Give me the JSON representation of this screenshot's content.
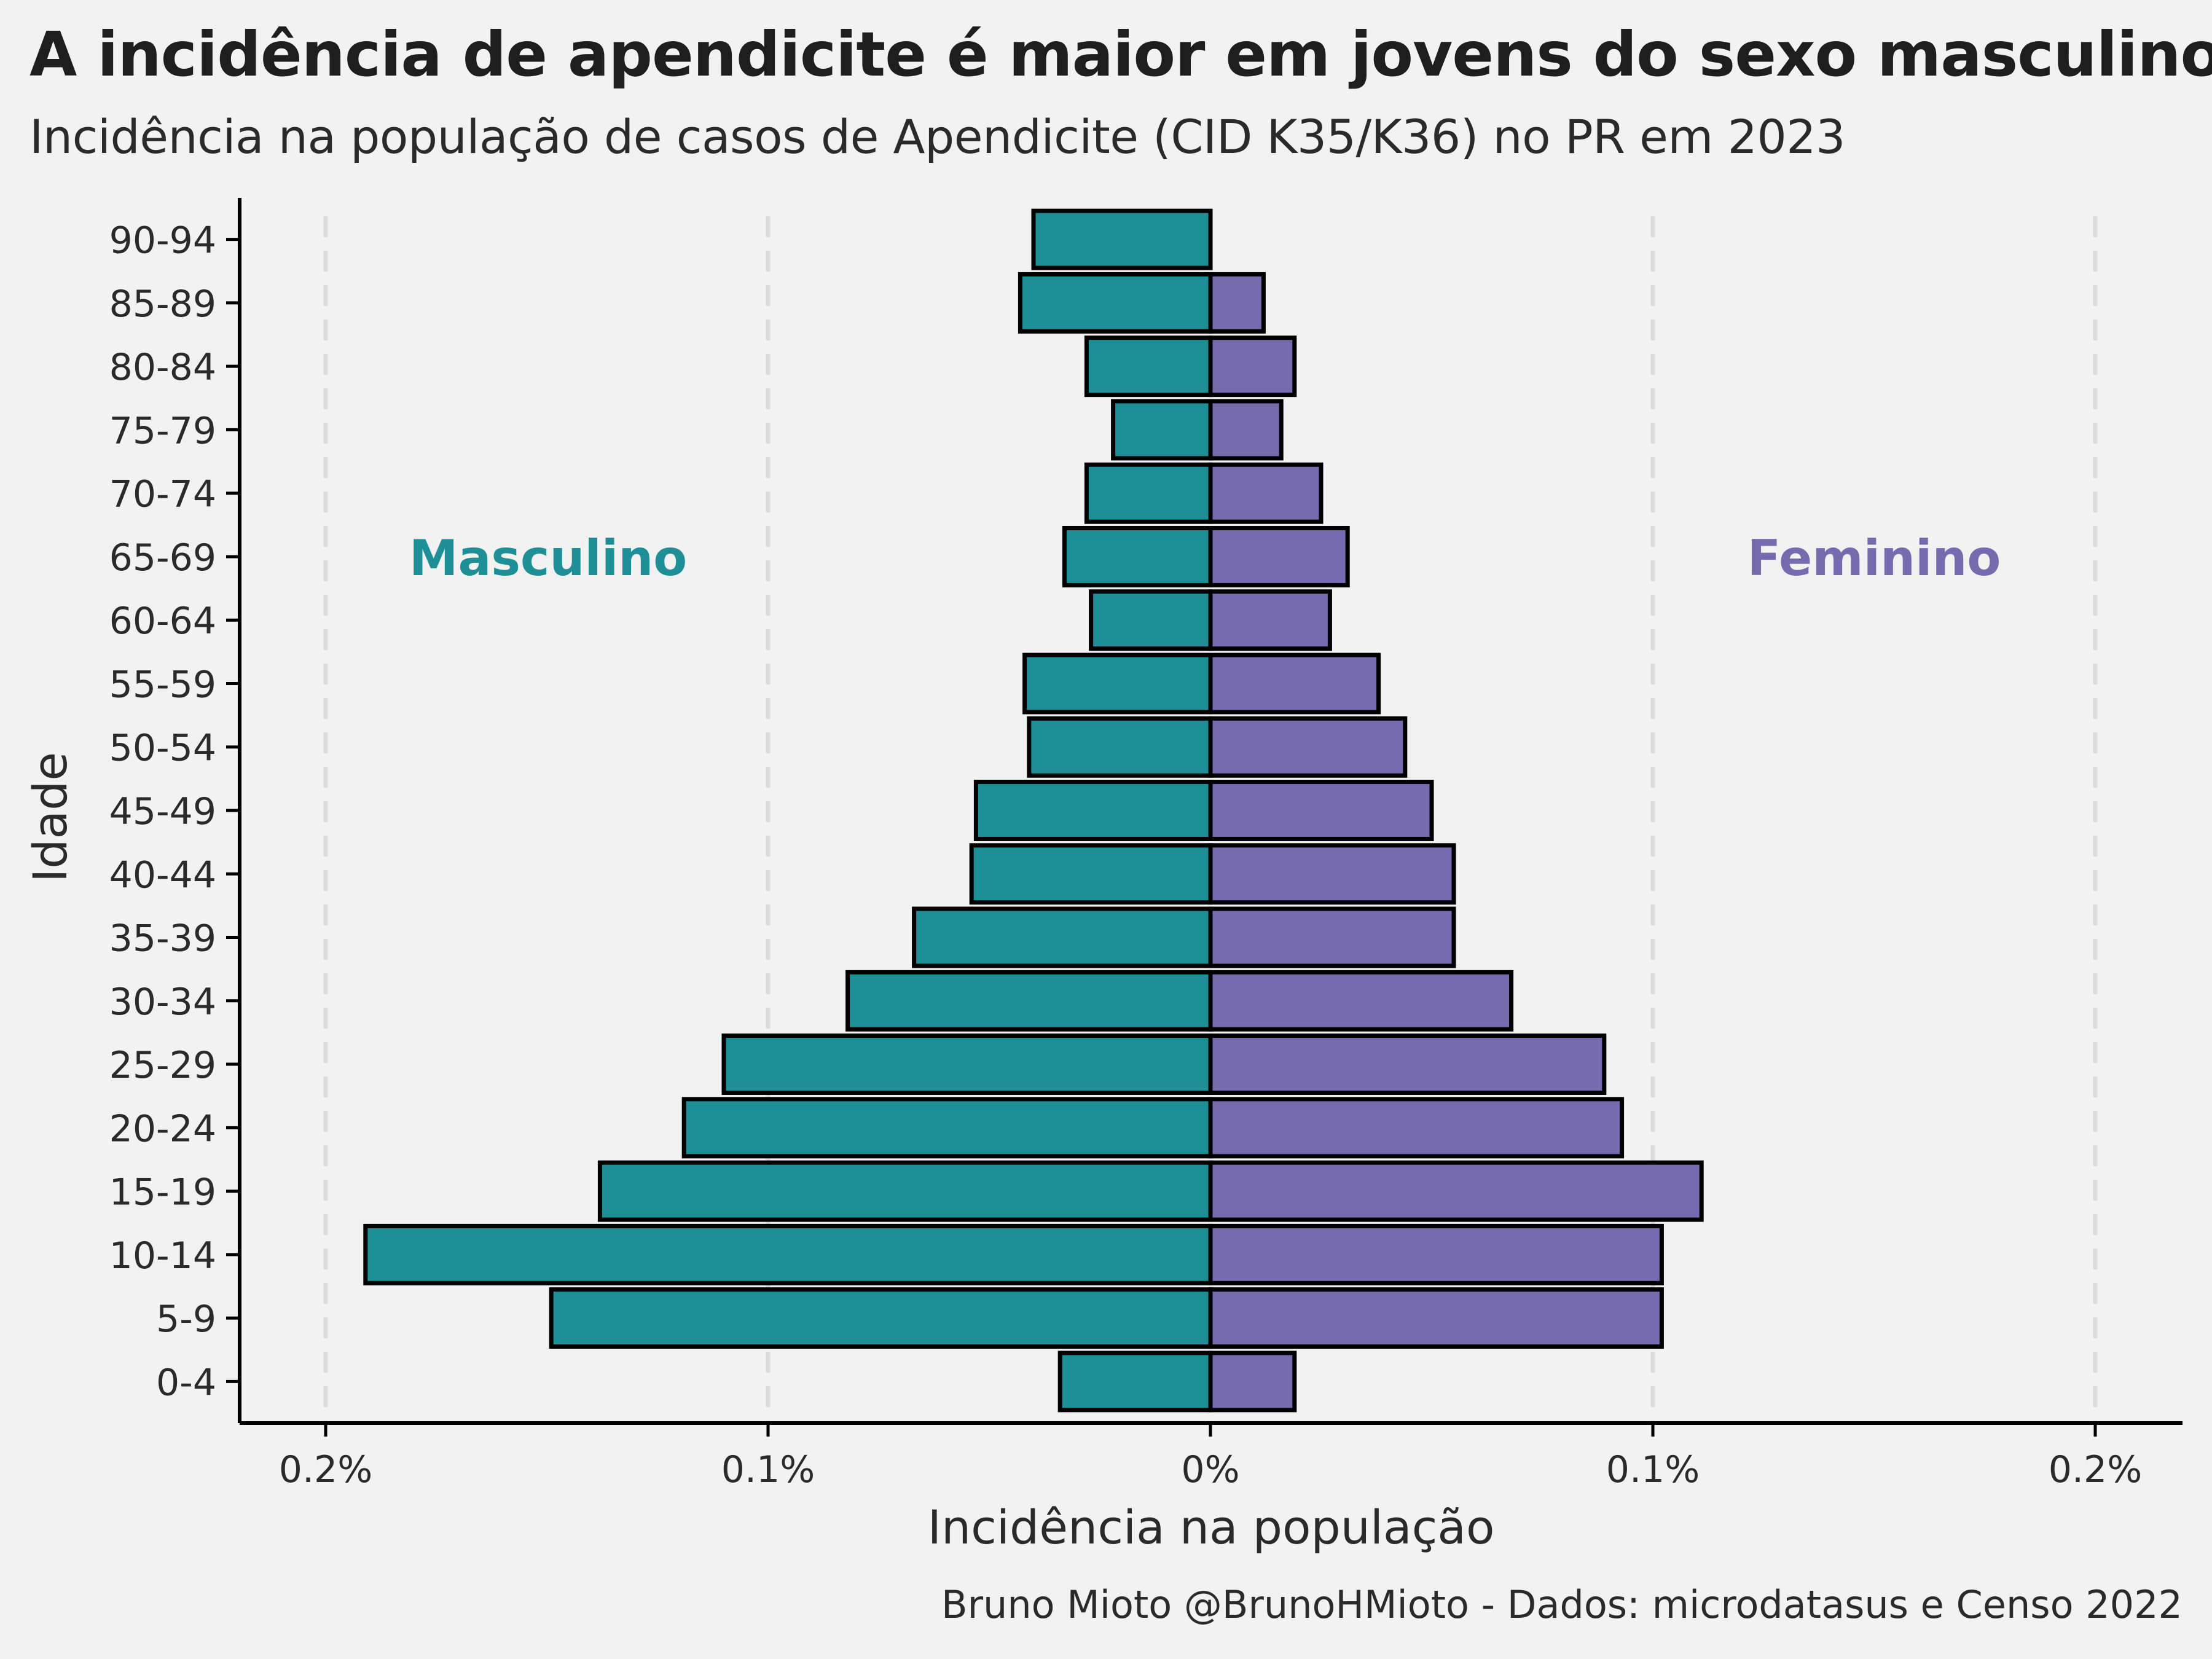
{
  "title": "A incidência de apendicite é maior em jovens do sexo masculino",
  "subtitle": "Incidência na população de casos de Apendicite (CID K35/K36) no PR em 2023",
  "caption": "Bruno Mioto @BrunoHMioto - Dados: microdatasus e Censo 2022",
  "colors": {
    "male": "#1e8f96",
    "female": "#776bb0",
    "background": "#f2f2f2",
    "grid": "#dcdcdc"
  },
  "chart_data": {
    "type": "bar",
    "orientation": "horizontal-pyramid",
    "xlabel": "Incidência na população",
    "ylabel": "Idade",
    "xlim": [
      -0.2,
      0.2
    ],
    "x_ticks": [
      -0.2,
      -0.1,
      0,
      0.1,
      0.2
    ],
    "x_tick_labels": [
      "0.2%",
      "0.1%",
      "0%",
      "0.1%",
      "0.2%"
    ],
    "grid": "vertical dashed",
    "categories": [
      "0-4",
      "5-9",
      "10-14",
      "15-19",
      "20-24",
      "25-29",
      "30-34",
      "35-39",
      "40-44",
      "45-49",
      "50-54",
      "55-59",
      "60-64",
      "65-69",
      "70-74",
      "75-79",
      "80-84",
      "85-89",
      "90-94"
    ],
    "series": [
      {
        "name": "Masculino",
        "values": [
          0.034,
          0.149,
          0.191,
          0.138,
          0.119,
          0.11,
          0.082,
          0.067,
          0.054,
          0.053,
          0.041,
          0.042,
          0.027,
          0.033,
          0.028,
          0.022,
          0.028,
          0.043,
          0.04
        ]
      },
      {
        "name": "Feminino",
        "values": [
          0.019,
          0.102,
          0.102,
          0.111,
          0.093,
          0.089,
          0.068,
          0.055,
          0.055,
          0.05,
          0.044,
          0.038,
          0.027,
          0.031,
          0.025,
          0.016,
          0.019,
          0.012,
          0
        ]
      }
    ]
  }
}
